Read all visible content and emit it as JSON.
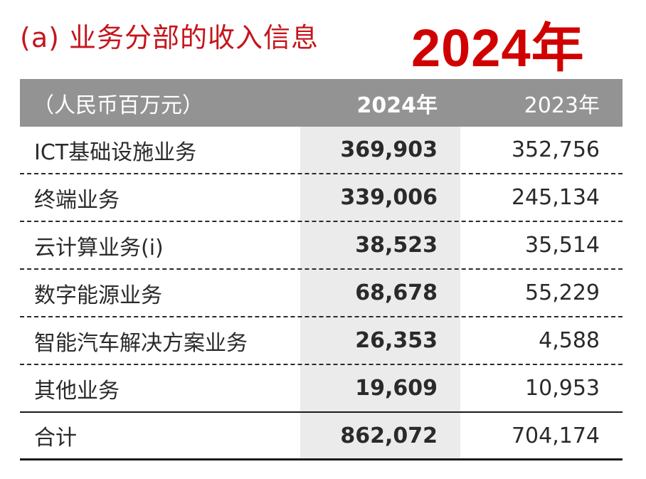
{
  "title": "(a) 业务分部的收入信息",
  "year_banner": "2024年",
  "table": {
    "header": {
      "unit": "（人民币百万元）",
      "current_year": "2024年",
      "previous_year": "2023年"
    },
    "rows": [
      {
        "label": "ICT基础设施业务",
        "current": "369,903",
        "previous": "352,756"
      },
      {
        "label": "终端业务",
        "current": "339,006",
        "previous": "245,134"
      },
      {
        "label": "云计算业务(i)",
        "current": "38,523",
        "previous": "35,514"
      },
      {
        "label": "数字能源业务",
        "current": "68,678",
        "previous": "55,229"
      },
      {
        "label": "智能汽车解决方案业务",
        "current": "26,353",
        "previous": "4,588"
      },
      {
        "label": "其他业务",
        "current": "19,609",
        "previous": "10,953"
      }
    ],
    "total": {
      "label": "合计",
      "current": "862,072",
      "previous": "704,174"
    }
  }
}
